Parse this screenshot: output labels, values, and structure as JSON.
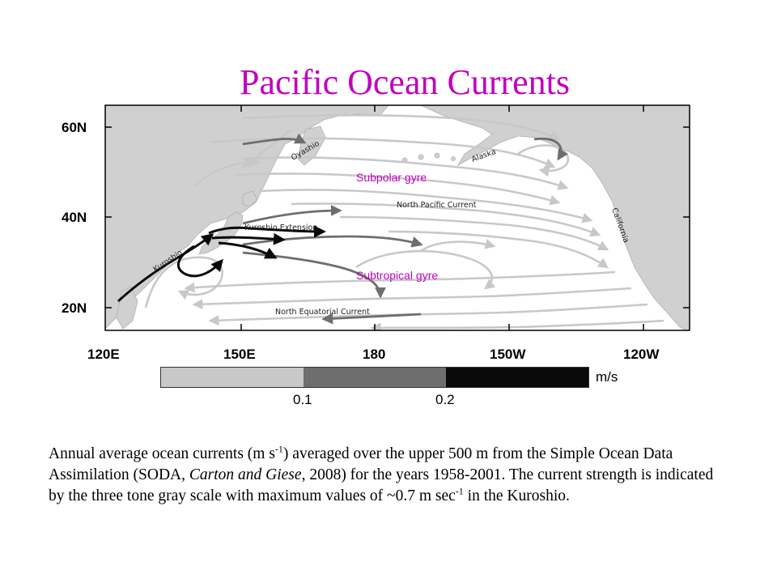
{
  "title": "Pacific Ocean Currents",
  "map": {
    "lat_labels": [
      "60N",
      "40N",
      "20N"
    ],
    "lon_labels": [
      "120E",
      "150E",
      "180",
      "150W",
      "120W"
    ],
    "current_labels": {
      "oyashio": "Oyashio",
      "alaska": "Alaska",
      "north_pacific": "North Pacific Current",
      "kuroshio_ext": "Kuroshio Extension",
      "california": "California",
      "kuroshio": "Kuroshio",
      "north_equatorial": "North Equatorial Current"
    },
    "regions": {
      "subpolar": "Subpolar gyre",
      "subtropical": "Subtropical gyre"
    },
    "colors": {
      "land": "#d0d0d0",
      "slow": "#c8c8c8",
      "medium": "#6e6e6e",
      "fast": "#0a0a0a",
      "label_accent": "#c000c0"
    }
  },
  "colorbar": {
    "unit": "m/s",
    "ticks": [
      "0.1",
      "0.2"
    ]
  },
  "caption": {
    "p1": "Annual average ocean currents (m s",
    "sup1": "-1",
    "p2": ") averaged over the upper 500 m from the Simple Ocean Data Assimilation (SODA, ",
    "cite": "Carton and Giese",
    "p3": ", 2008) for the years 1958-2001. The current strength is indicated by the three tone gray scale with maximum values of ~0.7 m sec",
    "sup2": "-1",
    "p4": " in the Kuroshio."
  }
}
